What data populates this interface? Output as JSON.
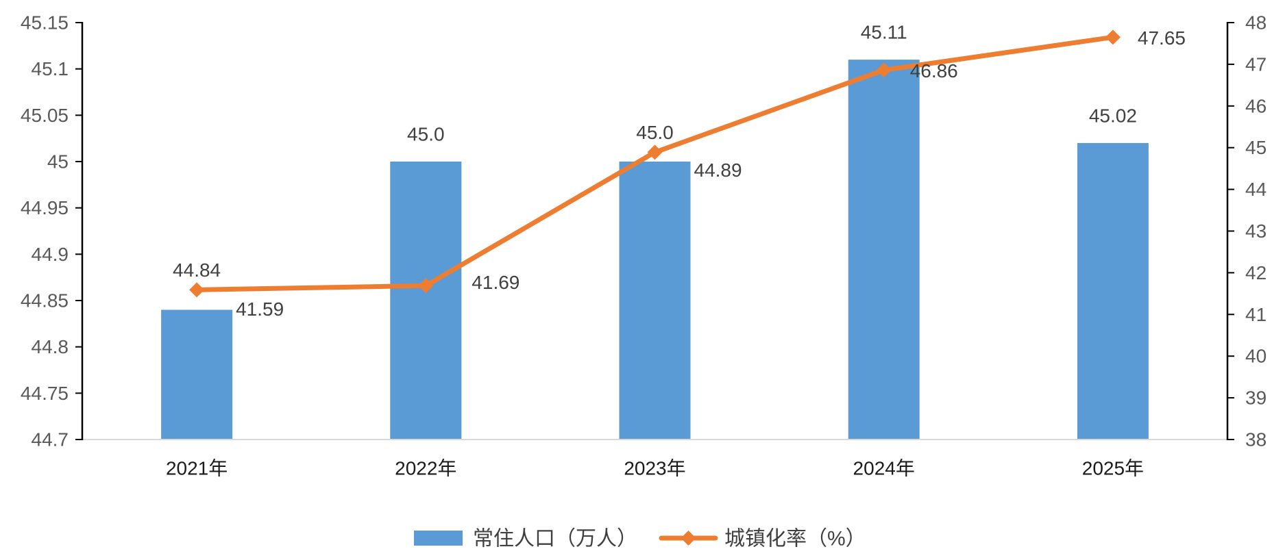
{
  "chart_data": {
    "type": "bar",
    "categories": [
      "2021年",
      "2022年",
      "2023年",
      "2024年",
      "2025年"
    ],
    "series": [
      {
        "name": "常住人口（万人）",
        "type": "bar",
        "y_axis": "left",
        "values": [
          44.84,
          45.0,
          45.0,
          45.11,
          45.02
        ],
        "labels": [
          "44.84",
          "45.0",
          "45.0",
          "45.11",
          "45.02"
        ],
        "color": "#5B9BD5"
      },
      {
        "name": "城镇化率（%）",
        "type": "line",
        "y_axis": "right",
        "values": [
          41.59,
          41.69,
          44.89,
          46.86,
          47.65
        ],
        "labels": [
          "41.59",
          "41.69",
          "44.89",
          "46.86",
          "47.65"
        ],
        "color": "#ED7D31",
        "marker": "diamond"
      }
    ],
    "y_left": {
      "ylim": [
        44.7,
        45.15
      ],
      "ticks": [
        "45.15",
        "45.1",
        "45.05",
        "45",
        "44.95",
        "44.9",
        "44.85",
        "44.8",
        "44.75",
        "44.7"
      ]
    },
    "y_right": {
      "ylim": [
        38,
        48
      ],
      "ticks": [
        "48",
        "47",
        "46",
        "45",
        "44",
        "43",
        "42",
        "41",
        "40",
        "39",
        "38"
      ]
    },
    "grid": false,
    "legend": "bottom"
  }
}
